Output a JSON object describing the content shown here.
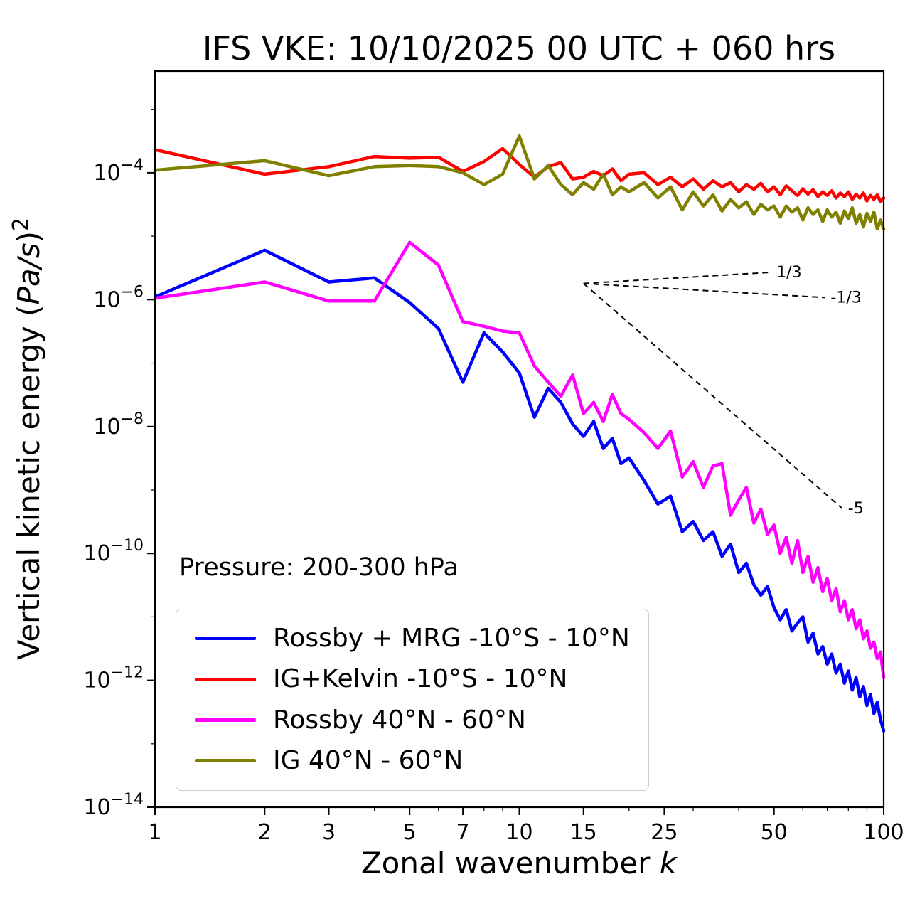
{
  "chart_data": {
    "type": "line",
    "title": "IFS VKE: 10/10/2025 00 UTC + 060 hrs",
    "xlabel": "Zonal wavenumber k",
    "ylabel": "Vertical kinetic energy (Pa/s)²",
    "label_parts": {
      "x_text": "Zonal wavenumber ",
      "x_var": "k",
      "y_text": "Vertical kinetic energy (",
      "y_units": "Pa/s",
      "y_close": ")",
      "y_sup": "2"
    },
    "annotation": "Pressure: 200-300 hPa",
    "xscale": "log",
    "yscale": "log",
    "xlim": [
      1,
      100
    ],
    "ylim": [
      1e-14,
      0.004
    ],
    "grid": false,
    "legend_position": "lower left",
    "xticks": [
      1,
      2,
      3,
      5,
      7,
      10,
      15,
      25,
      50,
      100
    ],
    "xticklabels": [
      "1",
      "2",
      "3",
      "5",
      "7",
      "10",
      "15",
      "25",
      "50",
      "100"
    ],
    "x_minor_ticks": [
      4,
      6,
      8,
      9,
      20,
      30,
      40,
      60,
      70,
      80,
      90
    ],
    "ytick_exponents": [
      -4,
      -6,
      -8,
      -10,
      -12,
      -14
    ],
    "y_minor_exponents": [
      -3,
      -5,
      -7,
      -9,
      -11,
      -13
    ],
    "x": [
      1,
      2,
      3,
      4,
      5,
      6,
      7,
      8,
      9,
      10,
      11,
      12,
      13,
      14,
      15,
      16,
      17,
      18,
      19,
      20,
      22,
      24,
      26,
      28,
      30,
      32,
      34,
      36,
      38,
      40,
      42,
      44,
      46,
      48,
      50,
      52,
      54,
      56,
      58,
      60,
      62,
      64,
      66,
      68,
      70,
      72,
      74,
      76,
      78,
      80,
      82,
      84,
      86,
      88,
      90,
      92,
      94,
      96,
      98,
      100
    ],
    "series": [
      {
        "id": "rossby-mrg-tropics",
        "name": "Rossby + MRG -10°S - 10°N",
        "color": "#0000ff",
        "values": [
          1.1e-06,
          6e-06,
          1.9e-06,
          2.2e-06,
          9e-07,
          3.5e-07,
          5e-08,
          3e-07,
          1.5e-07,
          7e-08,
          1.4e-08,
          4e-08,
          2.4e-08,
          1.1e-08,
          7e-09,
          1.2e-08,
          4.5e-09,
          6.5e-09,
          2.6e-09,
          3.2e-09,
          1.4e-09,
          6e-10,
          8e-10,
          2.2e-10,
          3.2e-10,
          1.6e-10,
          2.2e-10,
          9e-11,
          1.4e-10,
          5e-11,
          7e-11,
          3.2e-11,
          2.2e-11,
          3e-11,
          1.4e-11,
          9e-12,
          1.3e-11,
          6e-12,
          8e-12,
          1e-11,
          4e-12,
          5.5e-12,
          2.6e-12,
          3.4e-12,
          1.8e-12,
          2.6e-12,
          1.3e-12,
          1.8e-12,
          9e-13,
          1.4e-12,
          7e-13,
          1.1e-12,
          5.5e-13,
          8e-13,
          4e-13,
          6e-13,
          3e-13,
          4.5e-13,
          2.4e-13,
          1.6e-13
        ]
      },
      {
        "id": "ig-kelvin-tropics",
        "name": "IG+Kelvin -10°S - 10°N",
        "color": "#ff0000",
        "values": [
          0.00023,
          9.5e-05,
          0.000125,
          0.00018,
          0.00017,
          0.000175,
          0.000105,
          0.00015,
          0.00024,
          0.000135,
          8.5e-05,
          0.000125,
          0.000145,
          8e-05,
          8.5e-05,
          0.000105,
          9e-05,
          0.000115,
          7.5e-05,
          9.5e-05,
          0.0001,
          6.5e-05,
          8.5e-05,
          6e-05,
          8e-05,
          5.5e-05,
          7.5e-05,
          6e-05,
          7e-05,
          5e-05,
          6.5e-05,
          5.5e-05,
          6.8e-05,
          5e-05,
          6e-05,
          4.5e-05,
          6.2e-05,
          5.2e-05,
          4.4e-05,
          5.6e-05,
          4.6e-05,
          5.4e-05,
          4.2e-05,
          5e-05,
          4.4e-05,
          5.2e-05,
          4e-05,
          4.8e-05,
          4.2e-05,
          5e-05,
          3.8e-05,
          4.6e-05,
          4e-05,
          4.8e-05,
          3.6e-05,
          4.4e-05,
          3.8e-05,
          4.5e-05,
          3.5e-05,
          4e-05
        ]
      },
      {
        "id": "rossby-midlat",
        "name": "Rossby 40°N - 60°N",
        "color": "#ff00ff",
        "values": [
          1.05e-06,
          1.9e-06,
          9.5e-07,
          9.5e-07,
          8e-06,
          3.5e-06,
          4.5e-07,
          3.8e-07,
          3.2e-07,
          3e-07,
          9e-08,
          5e-08,
          3e-08,
          6.5e-08,
          1.6e-08,
          2.4e-08,
          1.2e-08,
          3.2e-08,
          1.6e-08,
          1.3e-08,
          8e-09,
          4.5e-09,
          8.5e-09,
          1.6e-09,
          2.8e-09,
          1.1e-09,
          2.4e-09,
          2.6e-09,
          4e-10,
          7e-10,
          1.1e-09,
          3e-10,
          5e-10,
          2e-10,
          2.8e-10,
          1e-10,
          1.8e-10,
          7e-11,
          1.6e-10,
          5e-11,
          9e-11,
          3.5e-11,
          6e-11,
          2.5e-11,
          4e-11,
          1.8e-11,
          2.8e-11,
          1.2e-11,
          1.8e-11,
          9e-12,
          1.3e-11,
          6.5e-12,
          9e-12,
          4.5e-12,
          6e-12,
          3.2e-12,
          4e-12,
          2.2e-12,
          2.8e-12,
          1.1e-12
        ]
      },
      {
        "id": "ig-midlat",
        "name": "IG 40°N - 60°N",
        "color": "#808000",
        "values": [
          0.00011,
          0.000155,
          9e-05,
          0.000125,
          0.00013,
          0.000125,
          0.0001,
          6.5e-05,
          9.5e-05,
          0.00038,
          8e-05,
          0.00013,
          6.5e-05,
          4.5e-05,
          7e-05,
          5.5e-05,
          9.5e-05,
          4.5e-05,
          6e-05,
          5e-05,
          7e-05,
          4e-05,
          6e-05,
          2.6e-05,
          5e-05,
          3e-05,
          4.5e-05,
          2.5e-05,
          3.8e-05,
          2.8e-05,
          3.5e-05,
          2.2e-05,
          3.2e-05,
          2.6e-05,
          3e-05,
          2e-05,
          3e-05,
          2.4e-05,
          2.8e-05,
          1.8e-05,
          2.8e-05,
          2.2e-05,
          2.6e-05,
          1.7e-05,
          2.6e-05,
          2e-05,
          2.4e-05,
          1.6e-05,
          2.5e-05,
          1.9e-05,
          2.8e-05,
          1.6e-05,
          2.2e-05,
          1.4e-05,
          2.3e-05,
          1.7e-05,
          2.4e-05,
          1.3e-05,
          1.8e-05,
          1.3e-05
        ]
      }
    ],
    "reference_lines": [
      {
        "label": "1/3",
        "slope": 0.333,
        "x": [
          15,
          49
        ],
        "y": [
          1.8e-06,
          2.7e-06
        ]
      },
      {
        "label": "-1/3",
        "slope": -0.333,
        "x": [
          15,
          69
        ],
        "y": [
          1.8e-06,
          1.08e-06
        ]
      },
      {
        "label": "-5",
        "slope": -5,
        "x": [
          15,
          77
        ],
        "y": [
          1.8e-06,
          5.1e-10
        ]
      }
    ]
  }
}
